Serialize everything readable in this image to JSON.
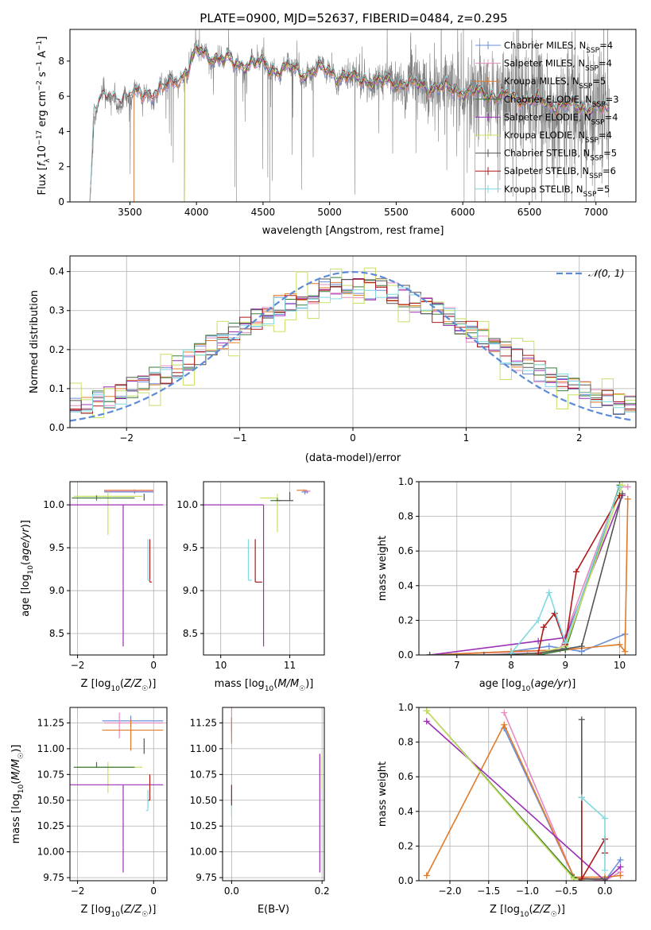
{
  "figure_title": "PLATE=0900, MJD=52637, FIBERID=0484, z=0.295",
  "colors": {
    "chabrier_miles": "#6a8fd8",
    "salpeter_miles": "#e68bc0",
    "kroupa_miles": "#e07b2a",
    "chabrier_elodie": "#3a7a3a",
    "salpeter_elodie": "#9b2fb5",
    "kroupa_elodie": "#c8e060",
    "chabrier_stelib": "#555555",
    "salpeter_stelib": "#b01818",
    "kroupa_stelib": "#7fd9e0",
    "data": "#808080",
    "normal": "#5b8bd8",
    "grid": "#b0b0b0"
  },
  "chart_data": [
    {
      "id": "spectrum",
      "type": "line",
      "title": "PLATE=0900, MJD=52637, FIBERID=0484, z=0.295",
      "xlabel": "wavelength [Angstrom, rest frame]",
      "ylabel": "Flux [f_λ 10^-17 erg cm^-2 s^-1 A^-1]",
      "xlim": [
        3050,
        7300
      ],
      "ylim": [
        0,
        9.8
      ],
      "xticks": [
        3500,
        4000,
        4500,
        5000,
        5500,
        6000,
        6500,
        7000
      ],
      "yticks": [
        0,
        2,
        4,
        6,
        8
      ],
      "grid": false,
      "legend_position": "top-right",
      "legend": [
        {
          "model": "Chabrier MILES",
          "nssp": "4",
          "color_key": "chabrier_miles"
        },
        {
          "model": "Salpeter MILES",
          "nssp": "4",
          "color_key": "salpeter_miles"
        },
        {
          "model": "Kroupa MILES",
          "nssp": "5",
          "color_key": "kroupa_miles"
        },
        {
          "model": "Chabrier ELODIE",
          "nssp": "3",
          "color_key": "chabrier_elodie"
        },
        {
          "model": "Salpeter ELODIE",
          "nssp": "4",
          "color_key": "salpeter_elodie"
        },
        {
          "model": "Kroupa ELODIE",
          "nssp": "4",
          "color_key": "kroupa_elodie"
        },
        {
          "model": "Chabrier STELIB",
          "nssp": "5",
          "color_key": "chabrier_stelib"
        },
        {
          "model": "Salpeter STELIB",
          "nssp": "6",
          "color_key": "salpeter_stelib"
        },
        {
          "model": "Kroupa STELIB",
          "nssp": "5",
          "color_key": "kroupa_stelib"
        }
      ],
      "continuum": {
        "x": [
          3200,
          3230,
          3300,
          3400,
          3500,
          3600,
          3700,
          3800,
          3900,
          3950,
          4000,
          4100,
          4200,
          4300,
          4400,
          4500,
          4600,
          4700,
          4800,
          4900,
          5000,
          5100,
          5200,
          5300,
          5400,
          5500,
          5600,
          5700,
          5800,
          5900,
          6000,
          6100,
          6200,
          6300,
          6400,
          6500,
          6600,
          6700,
          6800,
          6900,
          7000,
          7100
        ],
        "y": [
          0,
          5.3,
          5.8,
          5.9,
          6.0,
          6.1,
          6.3,
          6.6,
          7.2,
          7.8,
          8.5,
          8.3,
          8.1,
          7.8,
          7.9,
          7.8,
          7.5,
          7.6,
          7.3,
          7.5,
          7.4,
          7.1,
          7.0,
          6.9,
          6.8,
          6.8,
          6.7,
          6.6,
          6.5,
          6.4,
          6.3,
          6.2,
          6.1,
          6.0,
          5.9,
          5.8,
          5.7,
          5.5,
          5.5,
          5.4,
          5.3,
          5.2
        ]
      },
      "model_starts": {
        "miles": 3530,
        "elodie": 3910,
        "stelib": 3200
      },
      "data_start": 3200,
      "data_end": 7100
    },
    {
      "id": "residuals",
      "type": "histogram",
      "xlabel": "(data-model)/error",
      "ylabel": "Normed distribution",
      "xlim": [
        -2.5,
        2.5
      ],
      "ylim": [
        0,
        0.44
      ],
      "xticks": [
        -2,
        -1,
        0,
        1,
        2
      ],
      "yticks": [
        0.0,
        0.1,
        0.2,
        0.3,
        0.4
      ],
      "grid": true,
      "bin_width": 0.1,
      "normal_curve": {
        "mean": 0,
        "sigma": 1,
        "label": "𝒩(0, 1)"
      },
      "legend_position": "top-right"
    },
    {
      "id": "age_vs_Z",
      "type": "errorbar",
      "xlabel": "Z [log10(Z/Z☉)]",
      "ylabel": "age [log10(age/yr)]",
      "xlim": [
        -2.2,
        0.35
      ],
      "ylim": [
        8.25,
        10.27
      ],
      "xticks": [
        -2,
        0
      ],
      "yticks": [
        8.5,
        9.0,
        9.5,
        10.0
      ],
      "grid": true,
      "points": [
        {
          "x": -0.5,
          "xerr": [
            0.8,
            0.5
          ],
          "y": 10.17,
          "yerr": [
            0.01,
            0.01
          ],
          "color_key": "kroupa_miles"
        },
        {
          "x": -0.5,
          "xerr": [
            0.8,
            0.5
          ],
          "y": 10.16,
          "yerr": [
            0.02,
            0.01
          ],
          "color_key": "salpeter_miles"
        },
        {
          "x": -0.5,
          "xerr": [
            0.8,
            0.5
          ],
          "y": 10.15,
          "yerr": [
            0.02,
            0.01
          ],
          "color_key": "chabrier_miles"
        },
        {
          "x": -1.2,
          "xerr": [
            0.9,
            0.9
          ],
          "y": 10.1,
          "yerr": [
            0.45,
            0.05
          ],
          "color_key": "kroupa_elodie"
        },
        {
          "x": -1.5,
          "xerr": [
            0.65,
            1.0
          ],
          "y": 10.08,
          "yerr": [
            0.03,
            0.03
          ],
          "color_key": "chabrier_elodie"
        },
        {
          "x": -0.8,
          "xerr": [
            1.5,
            1.05
          ],
          "y": 10.0,
          "yerr": [
            1.65,
            0.0
          ],
          "color_key": "salpeter_elodie"
        },
        {
          "x": -0.25,
          "xerr": [
            0.0,
            0.0
          ],
          "y": 10.05,
          "yerr": [
            0.0,
            0.08
          ],
          "color_key": "chabrier_stelib"
        },
        {
          "x": -0.1,
          "xerr": [
            0.0,
            0.05
          ],
          "y": 9.1,
          "yerr": [
            0.0,
            0.5
          ],
          "color_key": "salpeter_stelib"
        },
        {
          "x": -0.15,
          "xerr": [
            0.0,
            0.05
          ],
          "y": 9.12,
          "yerr": [
            0.0,
            0.48
          ],
          "color_key": "kroupa_stelib"
        }
      ]
    },
    {
      "id": "age_vs_mass",
      "type": "errorbar",
      "xlabel": "mass [log10(M/M☉)]",
      "ylabel": "",
      "xlim": [
        9.75,
        11.5
      ],
      "ylim": [
        8.25,
        10.27
      ],
      "xticks": [
        10,
        11
      ],
      "yticks": [
        8.5,
        9.0,
        9.5,
        10.0
      ],
      "grid": true,
      "points": [
        {
          "x": 11.2,
          "xerr": [
            0.1,
            0.05
          ],
          "y": 10.17,
          "yerr": [
            0.01,
            0.01
          ],
          "color_key": "kroupa_miles"
        },
        {
          "x": 11.25,
          "xerr": [
            0.05,
            0.05
          ],
          "y": 10.16,
          "yerr": [
            0.03,
            0.01
          ],
          "color_key": "salpeter_miles"
        },
        {
          "x": 11.22,
          "xerr": [
            0.05,
            0.05
          ],
          "y": 10.15,
          "yerr": [
            0.03,
            0.01
          ],
          "color_key": "chabrier_miles"
        },
        {
          "x": 10.82,
          "xerr": [
            0.25,
            0.0
          ],
          "y": 10.08,
          "yerr": [
            0.4,
            0.05
          ],
          "color_key": "kroupa_elodie"
        },
        {
          "x": 10.82,
          "xerr": [
            0.1,
            0.05
          ],
          "y": 10.05,
          "yerr": [
            0.0,
            0.03
          ],
          "color_key": "chabrier_elodie"
        },
        {
          "x": 10.62,
          "xerr": [
            1.0,
            0.0
          ],
          "y": 10.0,
          "yerr": [
            1.65,
            0.0
          ],
          "color_key": "salpeter_elodie"
        },
        {
          "x": 11.0,
          "xerr": [
            0.2,
            0.05
          ],
          "y": 10.05,
          "yerr": [
            0.0,
            0.1
          ],
          "color_key": "chabrier_stelib"
        },
        {
          "x": 10.5,
          "xerr": [
            0.0,
            0.1
          ],
          "y": 9.1,
          "yerr": [
            0.0,
            0.5
          ],
          "color_key": "salpeter_stelib"
        },
        {
          "x": 10.4,
          "xerr": [
            0.0,
            0.05
          ],
          "y": 9.12,
          "yerr": [
            0.0,
            0.48
          ],
          "color_key": "kroupa_stelib"
        }
      ]
    },
    {
      "id": "mass_weight_vs_age",
      "type": "line",
      "xlabel": "age [log10(age/yr)]",
      "ylabel": "mass weight",
      "xlim": [
        6.3,
        10.3
      ],
      "ylim": [
        0,
        1.0
      ],
      "xticks": [
        7,
        8,
        9,
        10
      ],
      "yticks": [
        0.0,
        0.2,
        0.4,
        0.6,
        0.8,
        1.0
      ],
      "grid": true,
      "series": [
        {
          "color_key": "chabrier_miles",
          "x": [
            6.5,
            8.0,
            8.7,
            9.3,
            10.1
          ],
          "y": [
            0.0,
            0.02,
            0.05,
            0.02,
            0.12
          ]
        },
        {
          "color_key": "salpeter_miles",
          "x": [
            6.5,
            8.3,
            8.9,
            10.0,
            10.15
          ],
          "y": [
            0.0,
            0.02,
            0.03,
            0.97,
            0.97
          ]
        },
        {
          "color_key": "kroupa_miles",
          "x": [
            6.5,
            8.0,
            9.0,
            10.0,
            10.1,
            10.15
          ],
          "y": [
            0.0,
            0.02,
            0.03,
            0.06,
            0.02,
            0.9
          ]
        },
        {
          "color_key": "chabrier_elodie",
          "x": [
            6.5,
            8.5,
            9.0,
            10.0
          ],
          "y": [
            0.0,
            0.0,
            0.03,
            0.98
          ]
        },
        {
          "color_key": "salpeter_elodie",
          "x": [
            6.5,
            8.5,
            9.0,
            10.05
          ],
          "y": [
            0.0,
            0.08,
            0.1,
            0.92
          ]
        },
        {
          "color_key": "kroupa_elodie",
          "x": [
            6.5,
            8.0,
            8.5,
            9.0,
            10.05
          ],
          "y": [
            0.0,
            0.0,
            0.01,
            0.05,
            0.98
          ]
        },
        {
          "color_key": "chabrier_stelib",
          "x": [
            6.5,
            7.5,
            8.5,
            9.3,
            10.05
          ],
          "y": [
            0.0,
            0.0,
            0.01,
            0.05,
            0.93
          ]
        },
        {
          "color_key": "salpeter_stelib",
          "x": [
            8.5,
            8.6,
            8.8,
            9.0,
            9.2,
            10.0
          ],
          "y": [
            0.01,
            0.16,
            0.24,
            0.06,
            0.48,
            0.92
          ]
        },
        {
          "color_key": "kroupa_stelib",
          "x": [
            8.0,
            8.5,
            8.7,
            9.0,
            10.0
          ],
          "y": [
            0.01,
            0.2,
            0.36,
            0.07,
            0.97
          ]
        }
      ]
    },
    {
      "id": "mass_vs_Z",
      "type": "errorbar",
      "xlabel": "Z [log10(Z/Z☉)]",
      "ylabel": "mass [log10(M/M☉)]",
      "xlim": [
        -2.2,
        0.35
      ],
      "ylim": [
        9.72,
        11.4
      ],
      "xticks": [
        -2,
        0
      ],
      "yticks": [
        9.75,
        10.0,
        10.25,
        10.5,
        10.75,
        11.0,
        11.25
      ],
      "grid": true,
      "points": [
        {
          "x": -0.6,
          "xerr": [
            0.75,
            0.85
          ],
          "y": 11.27,
          "yerr": [
            0.05,
            0.05
          ],
          "color_key": "chabrier_miles"
        },
        {
          "x": -0.9,
          "xerr": [
            0.4,
            1.15
          ],
          "y": 11.25,
          "yerr": [
            0.15,
            0.1
          ],
          "color_key": "salpeter_miles"
        },
        {
          "x": -0.6,
          "xerr": [
            0.75,
            0.85
          ],
          "y": 11.18,
          "yerr": [
            0.2,
            0.1
          ],
          "color_key": "kroupa_miles"
        },
        {
          "x": -1.2,
          "xerr": [
            0.8,
            0.9
          ],
          "y": 10.82,
          "yerr": [
            0.25,
            0.05
          ],
          "color_key": "kroupa_elodie"
        },
        {
          "x": -1.5,
          "xerr": [
            0.6,
            1.0
          ],
          "y": 10.82,
          "yerr": [
            0.0,
            0.05
          ],
          "color_key": "chabrier_elodie"
        },
        {
          "x": -0.8,
          "xerr": [
            1.5,
            1.05
          ],
          "y": 10.65,
          "yerr": [
            0.85,
            0.0
          ],
          "color_key": "salpeter_elodie"
        },
        {
          "x": -0.25,
          "xerr": [
            0.0,
            0.0
          ],
          "y": 10.95,
          "yerr": [
            0.0,
            0.15
          ],
          "color_key": "chabrier_stelib"
        },
        {
          "x": -0.1,
          "xerr": [
            0.05,
            0.0
          ],
          "y": 10.5,
          "yerr": [
            0.0,
            0.25
          ],
          "color_key": "salpeter_stelib"
        },
        {
          "x": -0.15,
          "xerr": [
            0.05,
            0.0
          ],
          "y": 10.4,
          "yerr": [
            0.0,
            0.2
          ],
          "color_key": "kroupa_stelib"
        }
      ]
    },
    {
      "id": "mass_vs_EBV",
      "type": "errorbar",
      "xlabel": "E(B-V)",
      "ylabel": "",
      "xlim": [
        -0.02,
        0.205
      ],
      "ylim": [
        9.72,
        11.4
      ],
      "xticks": [
        0.0,
        0.2
      ],
      "yticks": [
        9.75,
        10.0,
        10.25,
        10.5,
        10.75,
        11.0,
        11.25
      ],
      "grid": true,
      "points": [
        {
          "x": 0.0,
          "xerr": [
            0.0,
            0.0
          ],
          "y": 11.25,
          "yerr": [
            0.1,
            0.15
          ],
          "color_key": "salpeter_miles"
        },
        {
          "x": 0.0,
          "xerr": [
            0.0,
            0.0
          ],
          "y": 11.2,
          "yerr": [
            0.15,
            0.1
          ],
          "color_key": "kroupa_miles"
        },
        {
          "x": 0.0,
          "xerr": [
            0.0,
            0.0
          ],
          "y": 10.5,
          "yerr": [
            0.15,
            0.1
          ],
          "color_key": "kroupa_stelib"
        },
        {
          "x": 0.0,
          "xerr": [
            0.0,
            0.0
          ],
          "y": 10.55,
          "yerr": [
            0.1,
            0.1
          ],
          "color_key": "salpeter_stelib"
        },
        {
          "x": 0.195,
          "xerr": [
            0.0,
            0.0
          ],
          "y": 10.65,
          "yerr": [
            0.85,
            0.3
          ],
          "color_key": "salpeter_elodie"
        },
        {
          "x": 0.2,
          "xerr": [
            0.0,
            0.0
          ],
          "y": 10.8,
          "yerr": [
            0.2,
            0.15
          ],
          "color_key": "kroupa_elodie"
        }
      ]
    },
    {
      "id": "mass_weight_vs_Z",
      "type": "line",
      "xlabel": "Z [log10(Z/Z☉)]",
      "ylabel": "mass weight",
      "xlim": [
        -2.4,
        0.4
      ],
      "ylim": [
        0,
        1.0
      ],
      "xticks": [
        -2.0,
        -1.5,
        -1.0,
        -0.5,
        0.0
      ],
      "yticks": [
        0.0,
        0.2,
        0.4,
        0.6,
        0.8,
        1.0
      ],
      "grid": true,
      "series": [
        {
          "color_key": "chabrier_miles",
          "x": [
            -1.3,
            -0.4,
            0.0,
            0.2
          ],
          "y": [
            0.88,
            0.02,
            0.0,
            0.12
          ]
        },
        {
          "color_key": "salpeter_miles",
          "x": [
            -1.3,
            -0.4,
            0.0,
            0.2
          ],
          "y": [
            0.97,
            0.02,
            0.0,
            0.05
          ]
        },
        {
          "color_key": "kroupa_miles",
          "x": [
            -2.3,
            -1.3,
            -0.4,
            0.0,
            0.2
          ],
          "y": [
            0.03,
            0.9,
            0.02,
            0.02,
            0.03
          ]
        },
        {
          "color_key": "chabrier_elodie",
          "x": [
            -2.3,
            -0.4,
            -0.3
          ],
          "y": [
            0.98,
            0.02,
            0.0
          ]
        },
        {
          "color_key": "salpeter_elodie",
          "x": [
            -2.3,
            0.0,
            0.2
          ],
          "y": [
            0.92,
            0.0,
            0.08
          ]
        },
        {
          "color_key": "kroupa_elodie",
          "x": [
            -2.3,
            -0.4,
            0.0
          ],
          "y": [
            0.98,
            0.01,
            0.01
          ]
        },
        {
          "color_key": "chabrier_stelib",
          "x": [
            -0.3,
            -0.3,
            0.0
          ],
          "y": [
            0.93,
            0.01,
            0.01
          ]
        },
        {
          "color_key": "salpeter_stelib",
          "x": [
            -0.3,
            -0.3,
            0.0,
            0.0
          ],
          "y": [
            0.48,
            0.01,
            0.24,
            0.16
          ]
        },
        {
          "color_key": "kroupa_stelib",
          "x": [
            -0.3,
            0.0,
            0.0
          ],
          "y": [
            0.48,
            0.36,
            0.06
          ]
        }
      ]
    }
  ]
}
